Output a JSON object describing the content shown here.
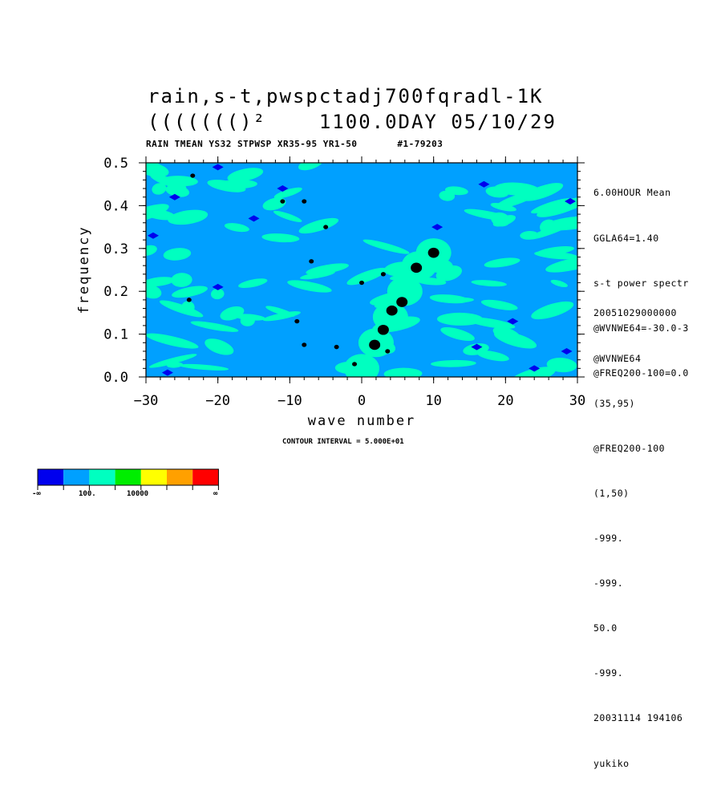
{
  "title": {
    "line1": "rain,s-t,pwspctadj700fqradl-1K",
    "line2": "((((((()²    1100.0DAY 05/10/29"
  },
  "subtitle": "RAIN TMEAN YS32 STPWSP XR35-95 YR1-50       #1-79203",
  "side_info": {
    "top": [
      "6.00HOUR Mean",
      "GGLA64=1.40",
      "s-t power spectr",
      "@WVNWE64=-30.0-3",
      "@FREQ200-100=0.0"
    ],
    "bottom": [
      "20051029000000",
      "@WVNWE64",
      "(35,95)",
      "@FREQ200-100",
      "(1,50)",
      "-999.",
      "-999.",
      "50.0",
      "-999.",
      "20031114 194106",
      "yukiko"
    ]
  },
  "contour_interval": "CONTOUR INTERVAL = 5.000E+01",
  "colors": {
    "levels": [
      "#0000ee",
      "#00a0ff",
      "#00ffc0",
      "#00ee00",
      "#ffff00",
      "#ffa000",
      "#ff0000"
    ],
    "background_field": "#00a0ff",
    "high_band": "#00ffc0",
    "low": "#0000ee",
    "peak": "#000000"
  },
  "legend": {
    "labels": [
      "-∞",
      "100.",
      "10000",
      "∞"
    ]
  },
  "chart_data": {
    "type": "heatmap",
    "xlabel": "wave number",
    "ylabel": "frequency",
    "xlim": [
      -30,
      30
    ],
    "ylim": [
      0.0,
      0.5
    ],
    "x_ticks": [
      "−30",
      "−20",
      "−10",
      "0",
      "10",
      "20",
      "30"
    ],
    "y_ticks": [
      "0.0",
      "0.1",
      "0.2",
      "0.3",
      "0.4",
      "0.5"
    ],
    "high_band_ridge": [
      [
        0,
        0.02
      ],
      [
        2,
        0.08
      ],
      [
        4,
        0.14
      ],
      [
        6,
        0.2
      ],
      [
        8,
        0.26
      ],
      [
        10,
        0.29
      ]
    ],
    "peaks": [
      {
        "x": 1.8,
        "y": 0.075
      },
      {
        "x": 3.0,
        "y": 0.11
      },
      {
        "x": 4.2,
        "y": 0.155
      },
      {
        "x": 5.6,
        "y": 0.175
      },
      {
        "x": 7.6,
        "y": 0.255
      },
      {
        "x": 10.0,
        "y": 0.29
      },
      {
        "x": 3.6,
        "y": 0.06
      },
      {
        "x": -1.0,
        "y": 0.03
      },
      {
        "x": -8.0,
        "y": 0.075
      },
      {
        "x": -9.0,
        "y": 0.13
      },
      {
        "x": -24.0,
        "y": 0.18
      },
      {
        "x": -3.5,
        "y": 0.07
      },
      {
        "x": -7.0,
        "y": 0.27
      },
      {
        "x": -5.0,
        "y": 0.35
      },
      {
        "x": -8.0,
        "y": 0.41
      },
      {
        "x": -11.0,
        "y": 0.41
      },
      {
        "x": -23.5,
        "y": 0.47
      },
      {
        "x": 0.0,
        "y": 0.22
      },
      {
        "x": 3.0,
        "y": 0.24
      }
    ],
    "lows": [
      {
        "x": -29,
        "y": 0.33
      },
      {
        "x": -27,
        "y": 0.01
      },
      {
        "x": -26,
        "y": 0.42
      },
      {
        "x": -20,
        "y": 0.49
      },
      {
        "x": -11,
        "y": 0.44
      },
      {
        "x": 16,
        "y": 0.07
      },
      {
        "x": 24,
        "y": 0.02
      },
      {
        "x": 28.5,
        "y": 0.06
      },
      {
        "x": 29,
        "y": 0.41
      },
      {
        "x": 17,
        "y": 0.45
      },
      {
        "x": 10.5,
        "y": 0.35
      },
      {
        "x": -20,
        "y": 0.21
      },
      {
        "x": 21,
        "y": 0.13
      },
      {
        "x": -15,
        "y": 0.37
      }
    ]
  }
}
